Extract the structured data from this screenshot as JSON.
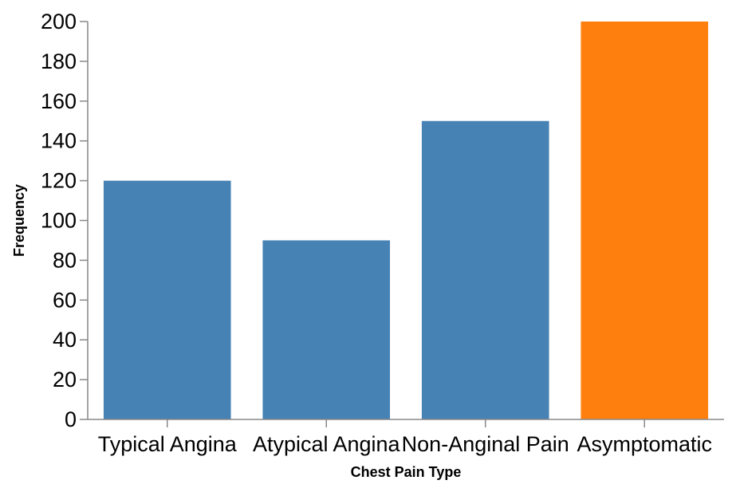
{
  "chart_data": {
    "type": "bar",
    "title": "",
    "xlabel": "Chest Pain Type",
    "ylabel": "Frequency",
    "categories": [
      "Typical Angina",
      "Atypical Angina",
      "Non-Anginal Pain",
      "Asymptomatic"
    ],
    "values": [
      120,
      90,
      150,
      200
    ],
    "ylim": [
      0,
      200
    ],
    "yticks": [
      0,
      20,
      40,
      60,
      80,
      100,
      120,
      140,
      160,
      180,
      200
    ],
    "grid": false,
    "legend": "none",
    "colors": {
      "default": "#4682b4",
      "highlight": "#ff7f0e"
    },
    "highlight_category": "Asymptomatic"
  }
}
